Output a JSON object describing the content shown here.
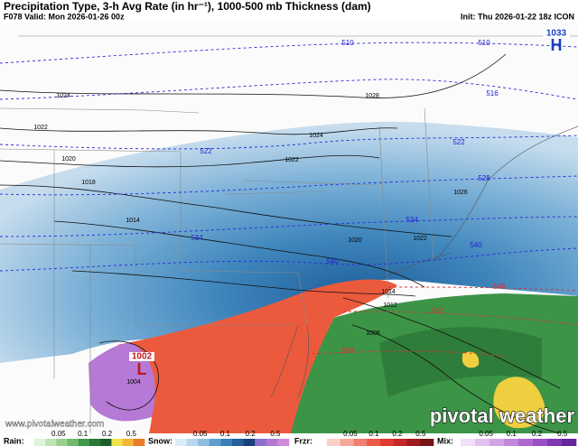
{
  "header": {
    "title": "Precipitation Type, 3-h Avg Rate (in hr⁻¹), 1000-500 mb Thickness (dam)",
    "valid": "F078 Valid: Mon 2026-01-26 00z",
    "init": "Init: Thu 2026-01-22 18z ICON"
  },
  "map": {
    "high": {
      "pressure": "1033",
      "letter": "H"
    },
    "low": {
      "pressure": "1002",
      "letter": "L"
    },
    "thickness_labels": [
      "510",
      "510",
      "516",
      "522",
      "522",
      "528",
      "534",
      "534",
      "540",
      "540",
      "546",
      "552",
      "558"
    ],
    "pressure_labels": [
      "1024",
      "1028",
      "1022",
      "1020",
      "1018",
      "1014",
      "1024",
      "1022",
      "1020",
      "1022",
      "1026",
      "1014",
      "1012",
      "1008",
      "1004"
    ]
  },
  "watermark": {
    "url": "www.pivotalweather.com",
    "brand": "pivotal weather"
  },
  "legend": [
    {
      "label": "Rain:",
      "ticks": [
        "0.05",
        "0.1",
        "0.2",
        "0.5"
      ]
    },
    {
      "label": "Snow:",
      "ticks": [
        "0.05",
        "0.1",
        "0.2",
        "0.5"
      ]
    },
    {
      "label": "Frzr:",
      "ticks": [
        "0.05",
        "0.1",
        "0.2",
        "0.5"
      ]
    },
    {
      "label": "Mix:",
      "ticks": [
        "0.05",
        "0.1",
        "0.2",
        "0.5"
      ]
    }
  ]
}
